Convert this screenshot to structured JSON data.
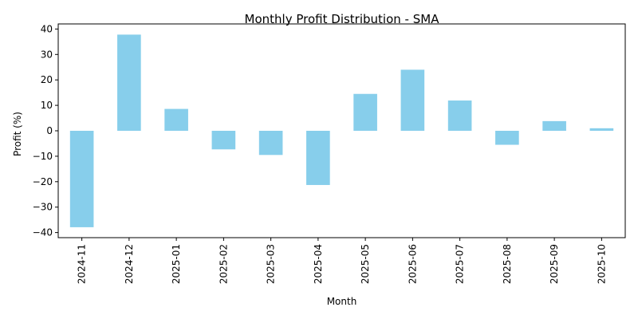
{
  "chart_data": {
    "type": "bar",
    "title": "Monthly Profit Distribution - SMA",
    "xlabel": "Month",
    "ylabel": "Profit (%)",
    "categories": [
      "2024-11",
      "2024-12",
      "2025-01",
      "2025-02",
      "2025-03",
      "2025-04",
      "2025-05",
      "2025-06",
      "2025-07",
      "2025-08",
      "2025-09",
      "2025-10"
    ],
    "values": [
      -37.9,
      37.8,
      8.6,
      -7.3,
      -9.5,
      -21.3,
      14.5,
      24.0,
      11.9,
      -5.5,
      3.8,
      1.0
    ],
    "ylim": [
      -42,
      42
    ],
    "yticks": [
      -40,
      -30,
      -20,
      -10,
      0,
      10,
      20,
      30,
      40
    ],
    "ytick_labels": [
      "−40",
      "−30",
      "−20",
      "−10",
      "0",
      "10",
      "20",
      "30",
      "40"
    ],
    "bar_color": "#87ceeb",
    "grid": false,
    "legend": "none"
  }
}
